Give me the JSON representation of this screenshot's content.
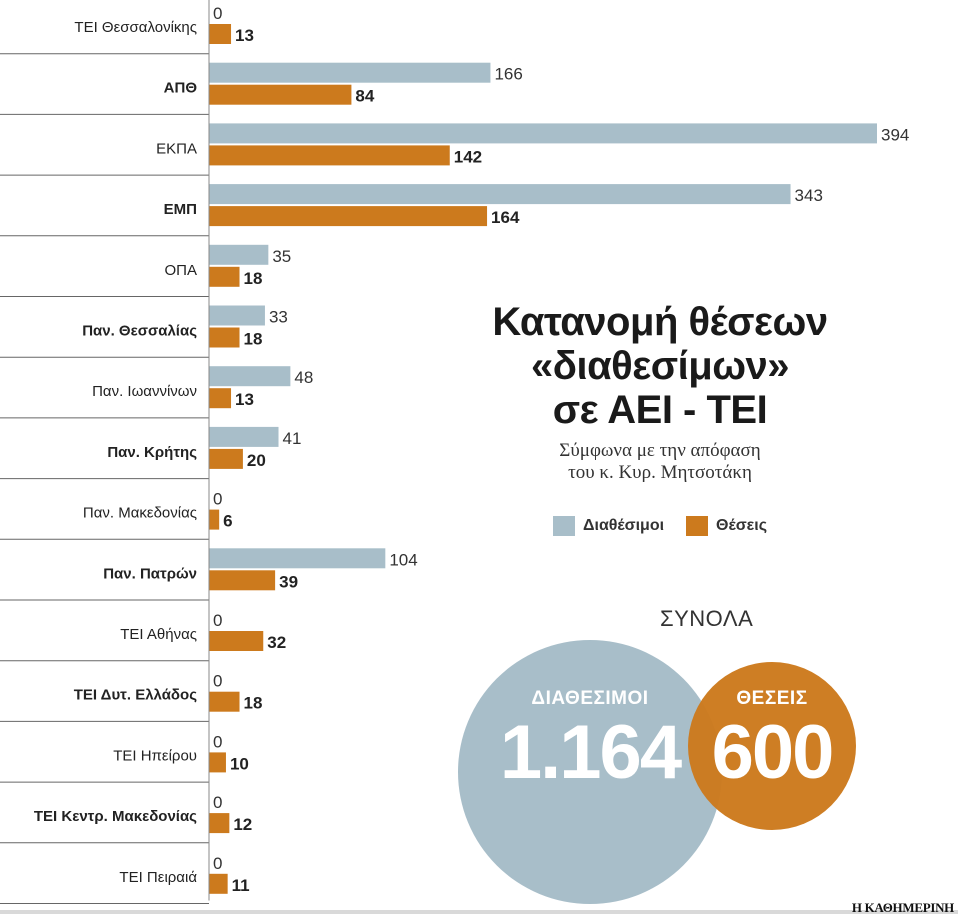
{
  "title": "Κατανομή θέσεων\n«διαθεσίμων»\nσε ΑΕΙ - ΤΕΙ",
  "subtitle": "Σύμφωνα με την απόφαση\nτου κ. Κυρ. Μητσοτάκη",
  "legend": {
    "available": "Διαθέσιμοι",
    "positions": "Θέσεις"
  },
  "colors": {
    "available": "#a8bec9",
    "positions": "#cc7a1d",
    "divider": "#666666"
  },
  "totals": {
    "label": "ΣΥΝΟΛΑ",
    "available_label": "ΔΙΑΘΕΣΙΜΟΙ",
    "available_value": "1.164",
    "positions_label": "ΘΕΣΕΙΣ",
    "positions_value": "600"
  },
  "credit": "Η ΚΑΘΗΜΕΡΙΝΗ",
  "chart_data": {
    "type": "bar",
    "orientation": "horizontal",
    "title": "Κατανομή θέσεων «διαθεσίμων» σε ΑΕΙ - ΤΕΙ",
    "categories": [
      "ΤΕΙ Θεσσαλονίκης",
      "ΑΠΘ",
      "ΕΚΠΑ",
      "ΕΜΠ",
      "ΟΠΑ",
      "Παν. Θεσσαλίας",
      "Παν. Ιωαννίνων",
      "Παν. Κρήτης",
      "Παν. Μακεδονίας",
      "Παν. Πατρών",
      "ΤΕΙ Αθήνας",
      "ΤΕΙ Δυτ. Ελλάδος",
      "ΤΕΙ Ηπείρου",
      "ΤΕΙ Κεντρ. Μακεδονίας",
      "ΤΕΙ Πειραιά"
    ],
    "bold_categories": [
      false,
      true,
      false,
      true,
      false,
      true,
      false,
      true,
      false,
      true,
      false,
      true,
      false,
      true,
      false
    ],
    "series": [
      {
        "name": "Διαθέσιμοι",
        "values": [
          0,
          166,
          394,
          343,
          35,
          33,
          48,
          41,
          0,
          104,
          0,
          0,
          0,
          0,
          0
        ]
      },
      {
        "name": "Θέσεις",
        "values": [
          13,
          84,
          142,
          164,
          18,
          18,
          13,
          20,
          6,
          39,
          32,
          18,
          10,
          12,
          11
        ]
      }
    ],
    "xlim": [
      0,
      394
    ],
    "legend": "right",
    "grid": false
  }
}
